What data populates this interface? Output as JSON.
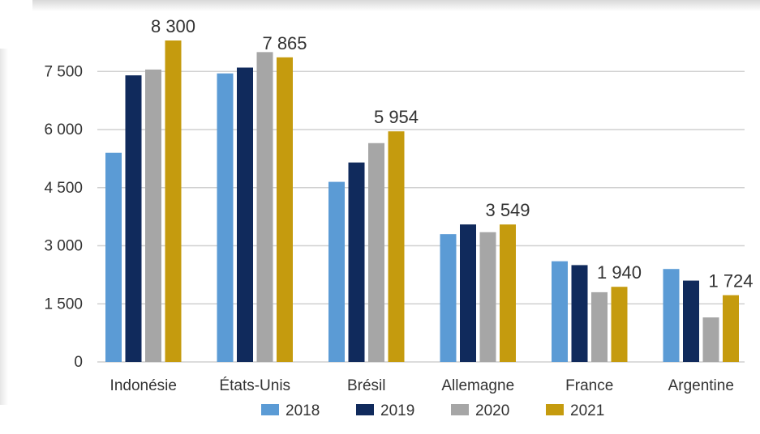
{
  "chart_data": {
    "type": "bar",
    "categories": [
      "Indonésie",
      "États-Unis",
      "Brésil",
      "Allemagne",
      "France",
      "Argentine"
    ],
    "series": [
      {
        "name": "2018",
        "color": "#5b9bd5",
        "values": [
          5400,
          7450,
          4650,
          3300,
          2600,
          2400
        ]
      },
      {
        "name": "2019",
        "color": "#102a5c",
        "values": [
          7400,
          7600,
          5150,
          3550,
          2500,
          2100
        ]
      },
      {
        "name": "2020",
        "color": "#a6a6a6",
        "values": [
          7550,
          8000,
          5650,
          3350,
          1800,
          1150
        ]
      },
      {
        "name": "2021",
        "color": "#c59b0e",
        "values": [
          8300,
          7865,
          5954,
          3549,
          1940,
          1724
        ]
      }
    ],
    "data_labels": [
      {
        "category": "Indonésie",
        "series": "2021",
        "text": "8 300"
      },
      {
        "category": "États-Unis",
        "series": "2021",
        "text": "7 865"
      },
      {
        "category": "Brésil",
        "series": "2021",
        "text": "5 954"
      },
      {
        "category": "Allemagne",
        "series": "2021",
        "text": "3 549"
      },
      {
        "category": "France",
        "series": "2021",
        "text": "1 940"
      },
      {
        "category": "Argentine",
        "series": "2021",
        "text": "1 724"
      }
    ],
    "y_ticks": [
      0,
      1500,
      3000,
      4500,
      6000,
      7500
    ],
    "y_tick_labels": [
      "0",
      "1 500",
      "3 000",
      "4 500",
      "6 000",
      "7 500"
    ],
    "ylim": [
      0,
      8300
    ],
    "grid": true,
    "legend_position": "bottom",
    "title": "",
    "xlabel": "",
    "ylabel": ""
  }
}
